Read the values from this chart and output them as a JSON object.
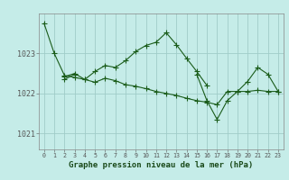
{
  "title": "Graphe pression niveau de la mer (hPa)",
  "bg_color": "#c5ece8",
  "grid_color": "#a0ccc8",
  "line_color": "#1a5c1a",
  "marker_color": "#1a5c1a",
  "ylim": [
    1020.6,
    1024.0
  ],
  "yticks": [
    1021,
    1022,
    1023
  ],
  "hours": [
    0,
    1,
    2,
    3,
    4,
    5,
    6,
    7,
    8,
    9,
    10,
    11,
    12,
    13,
    14,
    15,
    16,
    17,
    18,
    19,
    20,
    21,
    22,
    23
  ],
  "series1": [
    1023.75,
    1023.0,
    1022.45,
    1022.4,
    1022.35,
    1022.55,
    1022.7,
    1022.65,
    1022.82,
    1023.05,
    1023.2,
    1023.28,
    1023.52,
    1023.22,
    1022.88,
    1022.55,
    1022.2,
    null,
    null,
    null,
    null,
    null,
    null,
    null
  ],
  "series2": [
    null,
    null,
    1022.42,
    1022.5,
    1022.35,
    1022.28,
    1022.38,
    1022.32,
    1022.22,
    1022.18,
    1022.12,
    1022.05,
    1022.0,
    1021.95,
    1021.88,
    1021.82,
    1021.78,
    1021.72,
    1022.05,
    1022.05,
    1022.05,
    1022.08,
    1022.05,
    1022.05
  ],
  "series3": [
    null,
    null,
    1022.35,
    1022.48,
    null,
    null,
    null,
    null,
    null,
    null,
    null,
    null,
    null,
    null,
    null,
    null,
    null,
    null,
    null,
    null,
    null,
    null,
    null,
    null
  ],
  "series4": [
    null,
    null,
    null,
    null,
    null,
    null,
    null,
    null,
    null,
    null,
    null,
    null,
    null,
    null,
    null,
    1022.48,
    1021.82,
    1021.35,
    1021.82,
    1022.05,
    1022.3,
    1022.65,
    1022.48,
    1022.05
  ]
}
